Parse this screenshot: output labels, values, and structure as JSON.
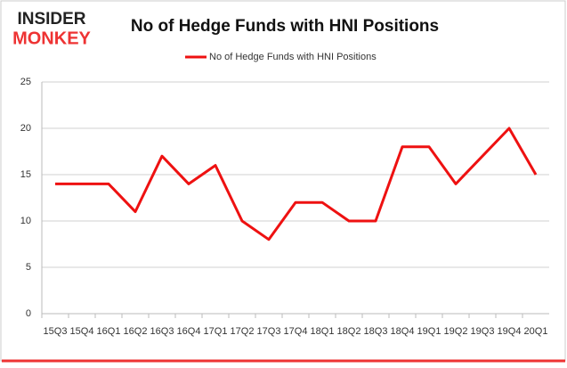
{
  "logo": [
    "INSIDER",
    "MONKEY"
  ],
  "chart_data": {
    "type": "line",
    "title": "No of Hedge Funds with HNI Positions",
    "categories": [
      "15Q3",
      "15Q4",
      "16Q1",
      "16Q2",
      "16Q3",
      "16Q4",
      "17Q1",
      "17Q2",
      "17Q3",
      "17Q4",
      "18Q1",
      "18Q2",
      "18Q3",
      "18Q4",
      "19Q1",
      "19Q2",
      "19Q3",
      "19Q4",
      "20Q1"
    ],
    "series": [
      {
        "name": "No of Hedge Funds with HNI Positions",
        "color": "#ee1111",
        "values": [
          14,
          14,
          14,
          11,
          17,
          14,
          16,
          10,
          8,
          12,
          12,
          10,
          10,
          18,
          18,
          14,
          17,
          20,
          15
        ]
      }
    ],
    "ylim": [
      0,
      25
    ],
    "yticks": [
      0,
      5,
      10,
      15,
      20,
      25
    ],
    "grid": true,
    "legend": "top"
  }
}
